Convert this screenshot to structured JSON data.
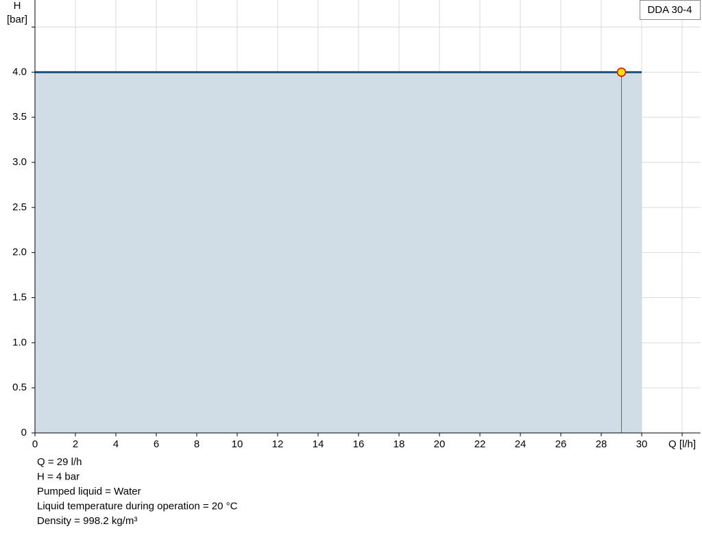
{
  "chart_data": {
    "type": "line",
    "x_label": "Q [l/h]",
    "y_label": "H",
    "y_unit": "[bar]",
    "xlim": [
      0,
      32.9
    ],
    "ylim": [
      0,
      4.8
    ],
    "xticks": [
      0,
      2,
      4,
      6,
      8,
      10,
      12,
      14,
      16,
      18,
      20,
      22,
      24,
      26,
      28,
      30
    ],
    "yticks": [
      0,
      0.5,
      {
        "value": 1,
        "label": "1.0"
      },
      1.5,
      {
        "value": 2,
        "label": "2.0"
      },
      2.5,
      {
        "value": 3,
        "label": "3.0"
      },
      3.5,
      {
        "value": 4,
        "label": "4.0"
      }
    ],
    "xgrid": [
      32
    ],
    "ygrid": [
      4.5
    ],
    "grid": true,
    "legend": "top-right",
    "series": [
      {
        "name": "DDA 30-4",
        "color": "#1d4f7c",
        "fill": "#d0dce6",
        "x": [
          0,
          30
        ],
        "values": [
          4,
          4
        ]
      }
    ],
    "duty_point": {
      "x": 29,
      "y": 4,
      "color": "#ffe000",
      "edge": "#e00000"
    },
    "info": [
      "Q = 29 l/h",
      "H = 4 bar",
      "Pumped liquid = Water",
      "Liquid temperature during operation = 20 °C",
      "Density = 998.2 kg/m³"
    ]
  }
}
